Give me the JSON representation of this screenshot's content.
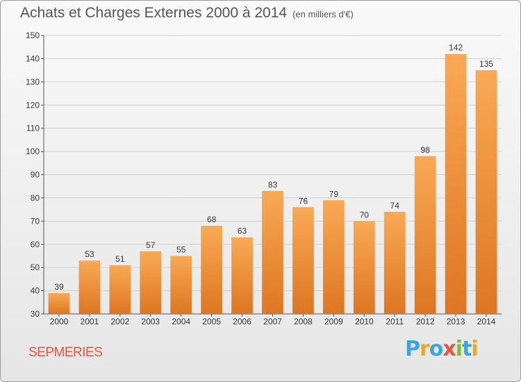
{
  "title": "Achats et Charges Externes 2000 à 2014",
  "subtitle": "(en milliers d'€)",
  "commune": "SEPMERIES",
  "logo": {
    "text": "Proxiti",
    "letters": [
      "P",
      "r",
      "o",
      "x",
      "i",
      "t",
      "i"
    ],
    "colors": [
      "#3aa6e0",
      "#f2a81d",
      "#3aa6e0",
      "#e8543a",
      "#7bbf2a",
      "#3aa6e0",
      "#f2a81d"
    ]
  },
  "colors": {
    "bar_light": "#f9a955",
    "bar_dark": "#dd7622",
    "grid": "#cfcfcf"
  },
  "chart_data": {
    "type": "bar",
    "categories": [
      "2000",
      "2001",
      "2002",
      "2003",
      "2004",
      "2005",
      "2006",
      "2007",
      "2008",
      "2009",
      "2010",
      "2011",
      "2012",
      "2013",
      "2014"
    ],
    "values": [
      39,
      53,
      51,
      57,
      55,
      68,
      63,
      83,
      76,
      79,
      70,
      74,
      98,
      142,
      135
    ],
    "ylim": [
      30,
      150
    ],
    "yticks": [
      30,
      40,
      50,
      60,
      70,
      80,
      90,
      100,
      110,
      120,
      130,
      140,
      150
    ],
    "grid": true,
    "xlabel": "",
    "ylabel": ""
  }
}
